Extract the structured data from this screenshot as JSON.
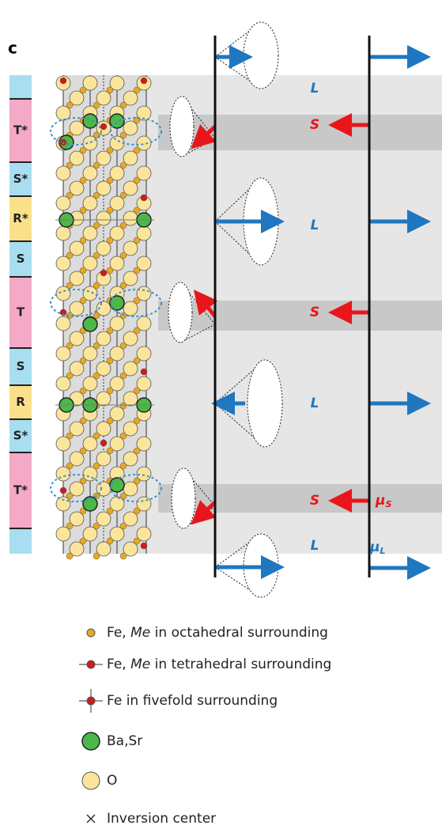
{
  "panel_label": "c",
  "blocks": [
    "T*",
    "S*",
    "R*",
    "S",
    "T",
    "S",
    "R",
    "S*",
    "T*"
  ],
  "layer_labels": [
    "L",
    "S",
    "L",
    "S",
    "L",
    "S",
    "L"
  ],
  "moment_labels": {
    "mu_s": {
      "symbol": "μ",
      "sub": "S"
    },
    "mu_l": {
      "symbol": "μ",
      "sub": "L"
    }
  },
  "legend": [
    {
      "parts": [
        "Fe, ",
        "Me",
        " in octahedral surrounding"
      ]
    },
    {
      "parts": [
        "Fe, ",
        "Me",
        " in tetrahedral surrounding"
      ]
    },
    {
      "parts": [
        "Fe in fivefold surrounding"
      ]
    },
    {
      "parts": [
        "Ba,Sr"
      ]
    },
    {
      "parts": [
        "O"
      ]
    },
    {
      "parts": [
        "Inversion center"
      ]
    }
  ]
}
